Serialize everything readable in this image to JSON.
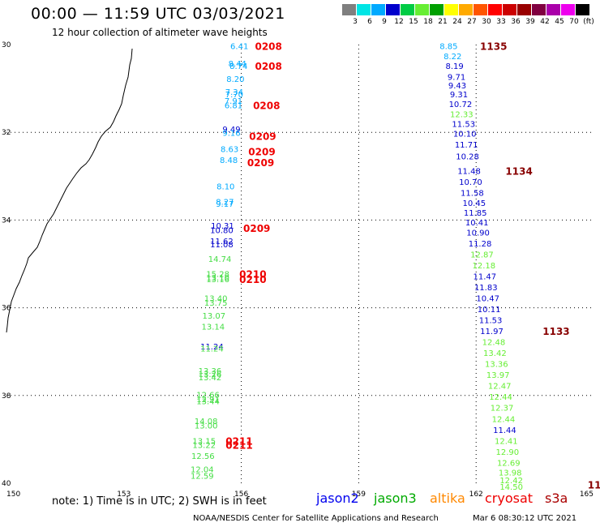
{
  "header": {
    "title": "00:00 — 11:59 UTC 03/03/2021",
    "subtitle": "12 hour collection of altimeter wave heights"
  },
  "colorbar": {
    "colors": [
      "#7f7f7f",
      "#00e5e5",
      "#00aaff",
      "#0000cc",
      "#00cc44",
      "#66ee33",
      "#00a000",
      "#ffff00",
      "#ffaa00",
      "#ff5500",
      "#ff0000",
      "#cc0000",
      "#990000",
      "#800040",
      "#aa00aa",
      "#ee00ee",
      "#000000"
    ],
    "labels": [
      "3",
      "6",
      "9",
      "12",
      "15",
      "18",
      "21",
      "24",
      "27",
      "30",
      "33",
      "36",
      "39",
      "42",
      "45",
      "70",
      "(ft)"
    ]
  },
  "map": {
    "lon_range": [
      150,
      165
    ],
    "lat_range": [
      -40,
      -30
    ],
    "x_ticks": [
      "150",
      "153",
      "156",
      "159",
      "162",
      "165"
    ],
    "y_ticks": [
      "30",
      "32",
      "34",
      "36",
      "38",
      "40"
    ]
  },
  "tracks": [
    {
      "name": "track-0208",
      "color": "#00aaff",
      "pts": [
        {
          "lat": -30.1,
          "lon": 155.95,
          "v": "6.41"
        },
        {
          "lat": -30.5,
          "lon": 155.9,
          "v": "8.44"
        },
        {
          "lat": -30.55,
          "lon": 155.93,
          "v": "8.74"
        },
        {
          "lat": -30.85,
          "lon": 155.85,
          "v": "8.20"
        },
        {
          "lat": -31.15,
          "lon": 155.82,
          "v": "7.34"
        },
        {
          "lat": -31.2,
          "lon": 155.82,
          "v": "7.70"
        },
        {
          "lat": -31.35,
          "lon": 155.8,
          "v": "7.91"
        },
        {
          "lat": -31.45,
          "lon": 155.8,
          "v": "6.81",
          "label": "0208",
          "lcolor": "#ee0000"
        }
      ]
    },
    {
      "name": "track-0209",
      "color": "#00aaff",
      "pts": [
        {
          "lat": -32.0,
          "lon": 155.75,
          "v": "9.49",
          "c": "#0000cc"
        },
        {
          "lat": -32.08,
          "lon": 155.75,
          "v": "9.16"
        },
        {
          "lat": -32.45,
          "lon": 155.7,
          "v": "8.63"
        },
        {
          "lat": -32.7,
          "lon": 155.68,
          "v": "8.48"
        },
        {
          "lat": -33.3,
          "lon": 155.6,
          "v": "8.10"
        },
        {
          "lat": -33.65,
          "lon": 155.58,
          "v": "8.27"
        },
        {
          "lat": -33.7,
          "lon": 155.58,
          "v": "9.17"
        },
        {
          "lat": -34.2,
          "lon": 155.52,
          "v": "10.31",
          "c": "#0000cc"
        },
        {
          "lat": -34.3,
          "lon": 155.5,
          "v": "10.80",
          "c": "#0000cc"
        },
        {
          "lat": -34.55,
          "lon": 155.5,
          "v": "11.62",
          "c": "#0000cc"
        },
        {
          "lat": -34.62,
          "lon": 155.5,
          "v": "11.08",
          "c": "#0000cc"
        }
      ]
    },
    {
      "name": "track-0210",
      "color": "#44dd44",
      "pts": [
        {
          "lat": -34.95,
          "lon": 155.45,
          "v": "14.74"
        },
        {
          "lat": -35.3,
          "lon": 155.4,
          "v": "15.28"
        },
        {
          "lat": -35.38,
          "lon": 155.4,
          "v": "13.10"
        },
        {
          "lat": -35.42,
          "lon": 155.4,
          "v": "13.16"
        },
        {
          "lat": -35.85,
          "lon": 155.35,
          "v": "13.40"
        },
        {
          "lat": -35.95,
          "lon": 155.35,
          "v": "13.75"
        },
        {
          "lat": -36.25,
          "lon": 155.3,
          "v": "13.07"
        },
        {
          "lat": -36.5,
          "lon": 155.28,
          "v": "13.14"
        },
        {
          "lat": -36.95,
          "lon": 155.25,
          "v": "11.24",
          "c": "#0000cc"
        },
        {
          "lat": -37.0,
          "lon": 155.25,
          "v": "11.24"
        },
        {
          "lat": -37.5,
          "lon": 155.2,
          "v": "13.36"
        },
        {
          "lat": -37.58,
          "lon": 155.2,
          "v": "13.26"
        },
        {
          "lat": -37.65,
          "lon": 155.2,
          "v": "13.42"
        },
        {
          "lat": -38.05,
          "lon": 155.15,
          "v": "12.66"
        },
        {
          "lat": -38.15,
          "lon": 155.15,
          "v": "12.91"
        },
        {
          "lat": -38.2,
          "lon": 155.15,
          "v": "13.44"
        },
        {
          "lat": -38.65,
          "lon": 155.1,
          "v": "14.08"
        },
        {
          "lat": -38.75,
          "lon": 155.1,
          "v": "13.00"
        },
        {
          "lat": -39.1,
          "lon": 155.05,
          "v": "13.15"
        },
        {
          "lat": -39.2,
          "lon": 155.05,
          "v": "13.22"
        },
        {
          "lat": -39.45,
          "lon": 155.02,
          "v": "12.56"
        },
        {
          "lat": -39.75,
          "lon": 155.0,
          "v": "12.04"
        },
        {
          "lat": -39.9,
          "lon": 155.0,
          "v": "12.59"
        }
      ]
    },
    {
      "name": "track-1135",
      "color": "#00aaff",
      "pts": [
        {
          "lat": -30.1,
          "lon": 161.3,
          "v": "8.85"
        },
        {
          "lat": -30.33,
          "lon": 161.4,
          "v": "8.22"
        },
        {
          "lat": -30.55,
          "lon": 161.45,
          "v": "8.19",
          "c": "#0000cc"
        },
        {
          "lat": -30.8,
          "lon": 161.5,
          "v": "9.71",
          "c": "#0000cc"
        },
        {
          "lat": -31.0,
          "lon": 161.52,
          "v": "9.43",
          "c": "#0000cc"
        },
        {
          "lat": -31.2,
          "lon": 161.56,
          "v": "9.31",
          "c": "#0000cc"
        },
        {
          "lat": -31.42,
          "lon": 161.6,
          "v": "10.72",
          "c": "#0000cc"
        },
        {
          "lat": -31.65,
          "lon": 161.63,
          "v": "12.33",
          "c": "#66ee33"
        },
        {
          "lat": -31.88,
          "lon": 161.68,
          "v": "11.53",
          "c": "#0000cc"
        },
        {
          "lat": -32.1,
          "lon": 161.71,
          "v": "10.10",
          "c": "#0000cc"
        },
        {
          "lat": -32.35,
          "lon": 161.75,
          "v": "11.71",
          "c": "#0000cc"
        },
        {
          "lat": -32.62,
          "lon": 161.78,
          "v": "10.28",
          "c": "#0000cc"
        },
        {
          "lat": -32.95,
          "lon": 161.82,
          "v": "11.48",
          "c": "#0000cc"
        },
        {
          "lat": -33.2,
          "lon": 161.86,
          "v": "10.70",
          "c": "#0000cc"
        },
        {
          "lat": -33.45,
          "lon": 161.9,
          "v": "11.58",
          "c": "#0000cc"
        },
        {
          "lat": -33.68,
          "lon": 161.95,
          "v": "10.45",
          "c": "#0000cc"
        },
        {
          "lat": -33.9,
          "lon": 161.98,
          "v": "11.85",
          "c": "#0000cc"
        },
        {
          "lat": -34.12,
          "lon": 162.02,
          "v": "10.41",
          "c": "#0000cc"
        },
        {
          "lat": -34.35,
          "lon": 162.05,
          "v": "10.90",
          "c": "#0000cc"
        },
        {
          "lat": -34.6,
          "lon": 162.1,
          "v": "11.28",
          "c": "#0000cc"
        },
        {
          "lat": -34.85,
          "lon": 162.15,
          "v": "12.87",
          "c": "#66ee33"
        },
        {
          "lat": -35.1,
          "lon": 162.2,
          "v": "12.18",
          "c": "#66ee33"
        },
        {
          "lat": -35.35,
          "lon": 162.22,
          "v": "11.47",
          "c": "#0000cc"
        },
        {
          "lat": -35.6,
          "lon": 162.25,
          "v": "11.83",
          "c": "#0000cc"
        },
        {
          "lat": -35.85,
          "lon": 162.3,
          "v": "10.47",
          "c": "#0000cc"
        },
        {
          "lat": -36.1,
          "lon": 162.33,
          "v": "10.11",
          "c": "#0000cc"
        },
        {
          "lat": -36.35,
          "lon": 162.37,
          "v": "11.53",
          "c": "#0000cc"
        },
        {
          "lat": -36.6,
          "lon": 162.4,
          "v": "11.97",
          "c": "#0000cc"
        },
        {
          "lat": -36.85,
          "lon": 162.45,
          "v": "12.48",
          "c": "#66ee33"
        },
        {
          "lat": -37.1,
          "lon": 162.48,
          "v": "13.42",
          "c": "#66ee33"
        },
        {
          "lat": -37.35,
          "lon": 162.52,
          "v": "13.36",
          "c": "#66ee33"
        },
        {
          "lat": -37.6,
          "lon": 162.56,
          "v": "13.97",
          "c": "#66ee33"
        },
        {
          "lat": -37.85,
          "lon": 162.6,
          "v": "12.47",
          "c": "#66ee33"
        },
        {
          "lat": -38.1,
          "lon": 162.63,
          "v": "12.44",
          "c": "#66ee33"
        },
        {
          "lat": -38.35,
          "lon": 162.66,
          "v": "12.37",
          "c": "#66ee33"
        },
        {
          "lat": -38.6,
          "lon": 162.7,
          "v": "12.44",
          "c": "#66ee33"
        },
        {
          "lat": -38.85,
          "lon": 162.73,
          "v": "11.44",
          "c": "#0000cc"
        },
        {
          "lat": -39.1,
          "lon": 162.77,
          "v": "12.41",
          "c": "#66ee33"
        },
        {
          "lat": -39.35,
          "lon": 162.8,
          "v": "12.90",
          "c": "#66ee33"
        },
        {
          "lat": -39.6,
          "lon": 162.83,
          "v": "12.69",
          "c": "#66ee33"
        },
        {
          "lat": -39.82,
          "lon": 162.87,
          "v": "13.98",
          "c": "#66ee33"
        },
        {
          "lat": -40.0,
          "lon": 162.9,
          "v": "12.42",
          "c": "#66ee33"
        },
        {
          "lat": -40.15,
          "lon": 162.9,
          "v": "14.50",
          "c": "#66ee33"
        }
      ]
    }
  ],
  "pass_labels": [
    {
      "text": "0208",
      "lat": -30.1,
      "lon": 156.35,
      "color": "#ee0000"
    },
    {
      "text": "0208",
      "lat": -30.55,
      "lon": 156.35,
      "color": "#ee0000"
    },
    {
      "text": "0208",
      "lat": -31.45,
      "lon": 156.3,
      "color": "#ee0000"
    },
    {
      "text": "0209",
      "lat": -32.15,
      "lon": 156.2,
      "color": "#ee0000"
    },
    {
      "text": "0209",
      "lat": -32.5,
      "lon": 156.18,
      "color": "#ee0000"
    },
    {
      "text": "0209",
      "lat": -32.75,
      "lon": 156.15,
      "color": "#ee0000"
    },
    {
      "text": "0209",
      "lat": -34.25,
      "lon": 156.05,
      "color": "#ee0000"
    },
    {
      "text": "0210",
      "lat": -35.3,
      "lon": 155.95,
      "color": "#ee0000"
    },
    {
      "text": "0210",
      "lat": -35.42,
      "lon": 155.95,
      "color": "#ee0000"
    },
    {
      "text": "0211",
      "lat": -39.1,
      "lon": 155.6,
      "color": "#ee0000"
    },
    {
      "text": "0211",
      "lat": -39.2,
      "lon": 155.6,
      "color": "#ee0000"
    },
    {
      "text": "1135",
      "lat": -30.1,
      "lon": 162.1,
      "color": "#880000"
    },
    {
      "text": "1134",
      "lat": -32.95,
      "lon": 162.75,
      "color": "#880000"
    },
    {
      "text": "1133",
      "lat": -36.6,
      "lon": 163.7,
      "color": "#880000"
    },
    {
      "text": "11",
      "lat": -40.1,
      "lon": 164.85,
      "color": "#880000"
    }
  ],
  "note": "note: 1) Time is in UTC; 2) SWH is in feet",
  "satellites": [
    {
      "name": "jason2",
      "color": "#0000ee"
    },
    {
      "name": "jason3",
      "color": "#00aa00"
    },
    {
      "name": "altika",
      "color": "#ff8800"
    },
    {
      "name": "cryosat",
      "color": "#ee0000"
    },
    {
      "name": "s3a",
      "color": "#aa0000"
    }
  ],
  "footer": "NOAA/NESDIS Center for Satellite Applications and Research",
  "timestamp": "Mar  6 08:30:12 UTC 2021"
}
